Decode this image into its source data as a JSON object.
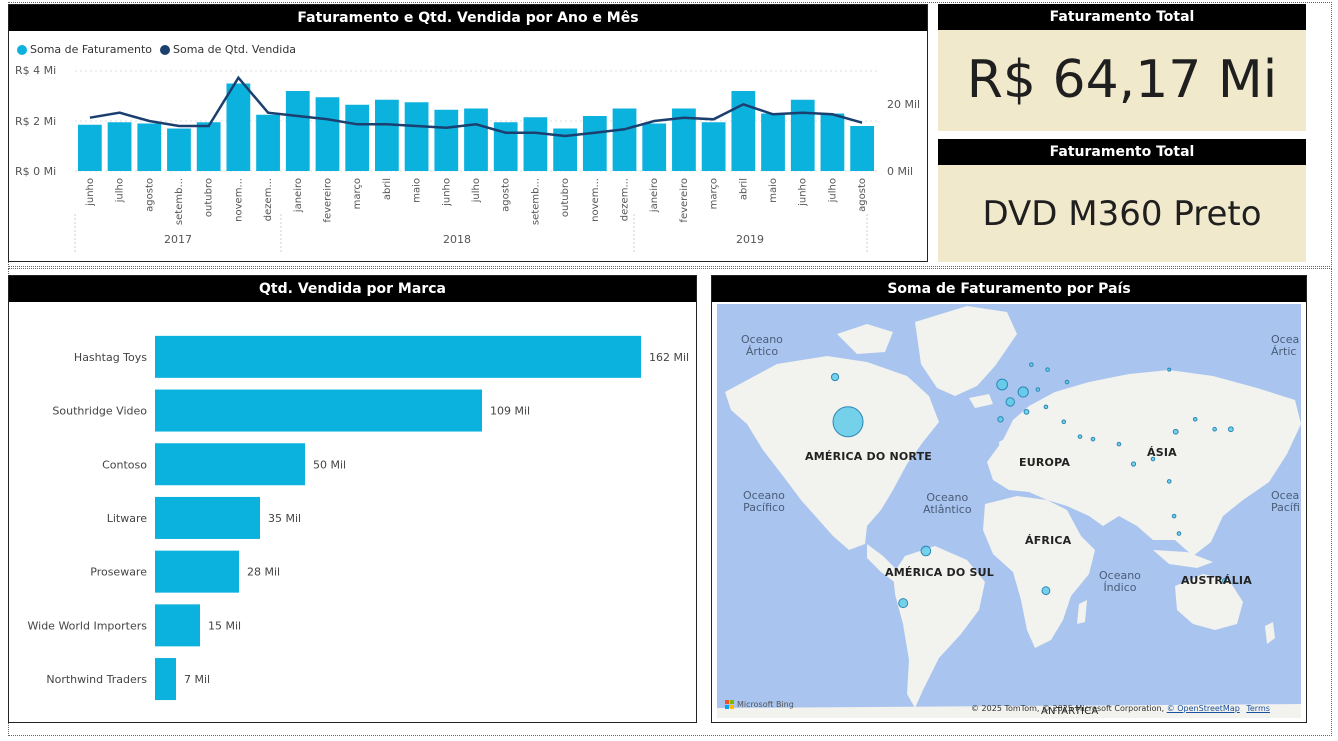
{
  "combo_chart": {
    "title": "Faturamento e Qtd. Vendida por Ano e Mês",
    "legend": [
      {
        "label": "Soma de Faturamento",
        "color": "#0bb2dd"
      },
      {
        "label": "Soma de Qtd. Vendida",
        "color": "#1b3f6f"
      }
    ],
    "y_left_ticks": [
      "R$ 4 Mi",
      "R$ 2 Mi",
      "R$ 0 Mi"
    ],
    "y_right_ticks": [
      "20 Mil",
      "0 Mil"
    ],
    "years": [
      "2017",
      "2018",
      "2019"
    ]
  },
  "kpi_total": {
    "title": "Faturamento Total",
    "value": "R$ 64,17 Mi"
  },
  "kpi_product": {
    "title": "Faturamento Total",
    "value": "DVD M360 Preto"
  },
  "brand_chart": {
    "title": "Qtd. Vendida por Marca"
  },
  "map": {
    "title": "Soma de Faturamento por País",
    "continents": {
      "north_america": "AMÉRICA DO NORTE",
      "south_america": "AMÉRICA DO SUL",
      "europe": "EUROPA",
      "asia": "ÁSIA",
      "africa": "ÁFRICA",
      "australia": "AUSTRÁLIA"
    },
    "oceans": {
      "arctic_1": "Oceano",
      "arctic_2": "Ártico",
      "arctic_r1": "Ocea",
      "arctic_r2": "Ártic",
      "pacific_1": "Oceano",
      "pacific_2": "Pacífico",
      "pacific_r1": "Ocea",
      "pacific_r2": "Pacífi",
      "atlantic_1": "Oceano",
      "atlantic_2": "Atlântico",
      "indian_1": "Oceano",
      "indian_2": "Índico",
      "antarctica": "ANTÁRTICA"
    },
    "bing": "Microsoft Bing",
    "copyright": "© 2025 TomTom, © 2025 Microsoft Corporation,",
    "osm": "© OpenStreetMap",
    "terms": "Terms",
    "colors": {
      "water": "#a9c5ef",
      "land": "#f2f2ee",
      "bubble": "#5fcbe8"
    }
  },
  "chart_data": [
    {
      "type": "bar+line",
      "title": "Faturamento e Qtd. Vendida por Ano e Mês",
      "categories": [
        "junho",
        "julho",
        "agosto",
        "setemb...",
        "outubro",
        "novem...",
        "dezem...",
        "janeiro",
        "fevereiro",
        "março",
        "abril",
        "maio",
        "junho",
        "julho",
        "agosto",
        "setemb...",
        "outubro",
        "novem...",
        "dezem...",
        "janeiro",
        "fevereiro",
        "março",
        "abril",
        "maio",
        "junho",
        "julho",
        "agosto"
      ],
      "category_years": [
        "2017",
        "2017",
        "2017",
        "2017",
        "2017",
        "2017",
        "2017",
        "2018",
        "2018",
        "2018",
        "2018",
        "2018",
        "2018",
        "2018",
        "2018",
        "2018",
        "2018",
        "2018",
        "2018",
        "2019",
        "2019",
        "2019",
        "2019",
        "2019",
        "2019",
        "2019",
        "2019"
      ],
      "series": [
        {
          "name": "Soma de Faturamento",
          "axis": "left",
          "unit": "R$ Mi",
          "values": [
            1.85,
            1.95,
            1.9,
            1.7,
            1.95,
            3.5,
            2.25,
            3.2,
            2.95,
            2.65,
            2.85,
            2.75,
            2.45,
            2.5,
            1.95,
            2.15,
            1.7,
            2.2,
            2.5,
            1.9,
            2.5,
            1.95,
            3.2,
            2.3,
            2.85,
            2.3,
            1.8
          ]
        },
        {
          "name": "Soma de Qtd. Vendida",
          "axis": "right",
          "unit": "Mil",
          "values": [
            16,
            17.5,
            15,
            13.5,
            13.5,
            28,
            17.5,
            16.5,
            15.5,
            14,
            14,
            13.5,
            13,
            14,
            11.5,
            11.5,
            10.5,
            11.5,
            12.5,
            15,
            16,
            15.5,
            20,
            17,
            17.5,
            17,
            14.5
          ]
        }
      ],
      "y_left_range": [
        0,
        4
      ],
      "y_right_range": [
        0,
        30
      ],
      "grid": true,
      "legend_position": "top-left"
    },
    {
      "type": "bar",
      "orientation": "horizontal",
      "title": "Qtd. Vendida por Marca",
      "categories": [
        "Hashtag Toys",
        "Southridge Video",
        "Contoso",
        "Litware",
        "Proseware",
        "Wide World Importers",
        "Northwind Traders"
      ],
      "values": [
        162,
        109,
        50,
        35,
        28,
        15,
        7
      ],
      "labels": [
        "162 Mil",
        "109 Mil",
        "50 Mil",
        "35 Mil",
        "28 Mil",
        "15 Mil",
        "7 Mil"
      ],
      "unit": "Mil",
      "color": "#0bb2dd"
    },
    {
      "type": "scatter",
      "subtype": "bubble-map",
      "title": "Soma de Faturamento por País",
      "x_unit": "longitude",
      "y_unit": "latitude",
      "points": [
        {
          "x": -98,
          "y": 39,
          "size": 5
        },
        {
          "x": -106,
          "y": 57,
          "size": 1.2
        },
        {
          "x": -50,
          "y": -13,
          "size": 1.6
        },
        {
          "x": -64,
          "y": -34,
          "size": 1.5
        },
        {
          "x": 24,
          "y": -29,
          "size": 1.3
        },
        {
          "x": -3,
          "y": 54,
          "size": 1.8
        },
        {
          "x": 10,
          "y": 51,
          "size": 1.7
        },
        {
          "x": 2,
          "y": 47,
          "size": 1.4
        },
        {
          "x": -4,
          "y": 40,
          "size": 0.9
        },
        {
          "x": 12,
          "y": 43,
          "size": 0.8
        },
        {
          "x": 15,
          "y": 62,
          "size": 0.6
        },
        {
          "x": 25,
          "y": 60,
          "size": 0.6
        },
        {
          "x": 19,
          "y": 52,
          "size": 0.6
        },
        {
          "x": 24,
          "y": 45,
          "size": 0.6
        },
        {
          "x": 35,
          "y": 39,
          "size": 0.6
        },
        {
          "x": 45,
          "y": 33,
          "size": 0.6
        },
        {
          "x": 53,
          "y": 32,
          "size": 0.6
        },
        {
          "x": 69,
          "y": 30,
          "size": 0.6
        },
        {
          "x": 78,
          "y": 22,
          "size": 0.7
        },
        {
          "x": 90,
          "y": 24,
          "size": 0.6
        },
        {
          "x": 104,
          "y": 35,
          "size": 0.8
        },
        {
          "x": 116,
          "y": 40,
          "size": 0.6
        },
        {
          "x": 138,
          "y": 36,
          "size": 0.8
        },
        {
          "x": 128,
          "y": 36,
          "size": 0.6
        },
        {
          "x": 100,
          "y": 15,
          "size": 0.6
        },
        {
          "x": 103,
          "y": 1,
          "size": 0.6
        },
        {
          "x": 106,
          "y": -6,
          "size": 0.6
        },
        {
          "x": 37,
          "y": 55,
          "size": 0.6
        },
        {
          "x": 100,
          "y": 60,
          "size": 0.5
        },
        {
          "x": 134,
          "y": -25,
          "size": 0.7
        }
      ]
    }
  ]
}
